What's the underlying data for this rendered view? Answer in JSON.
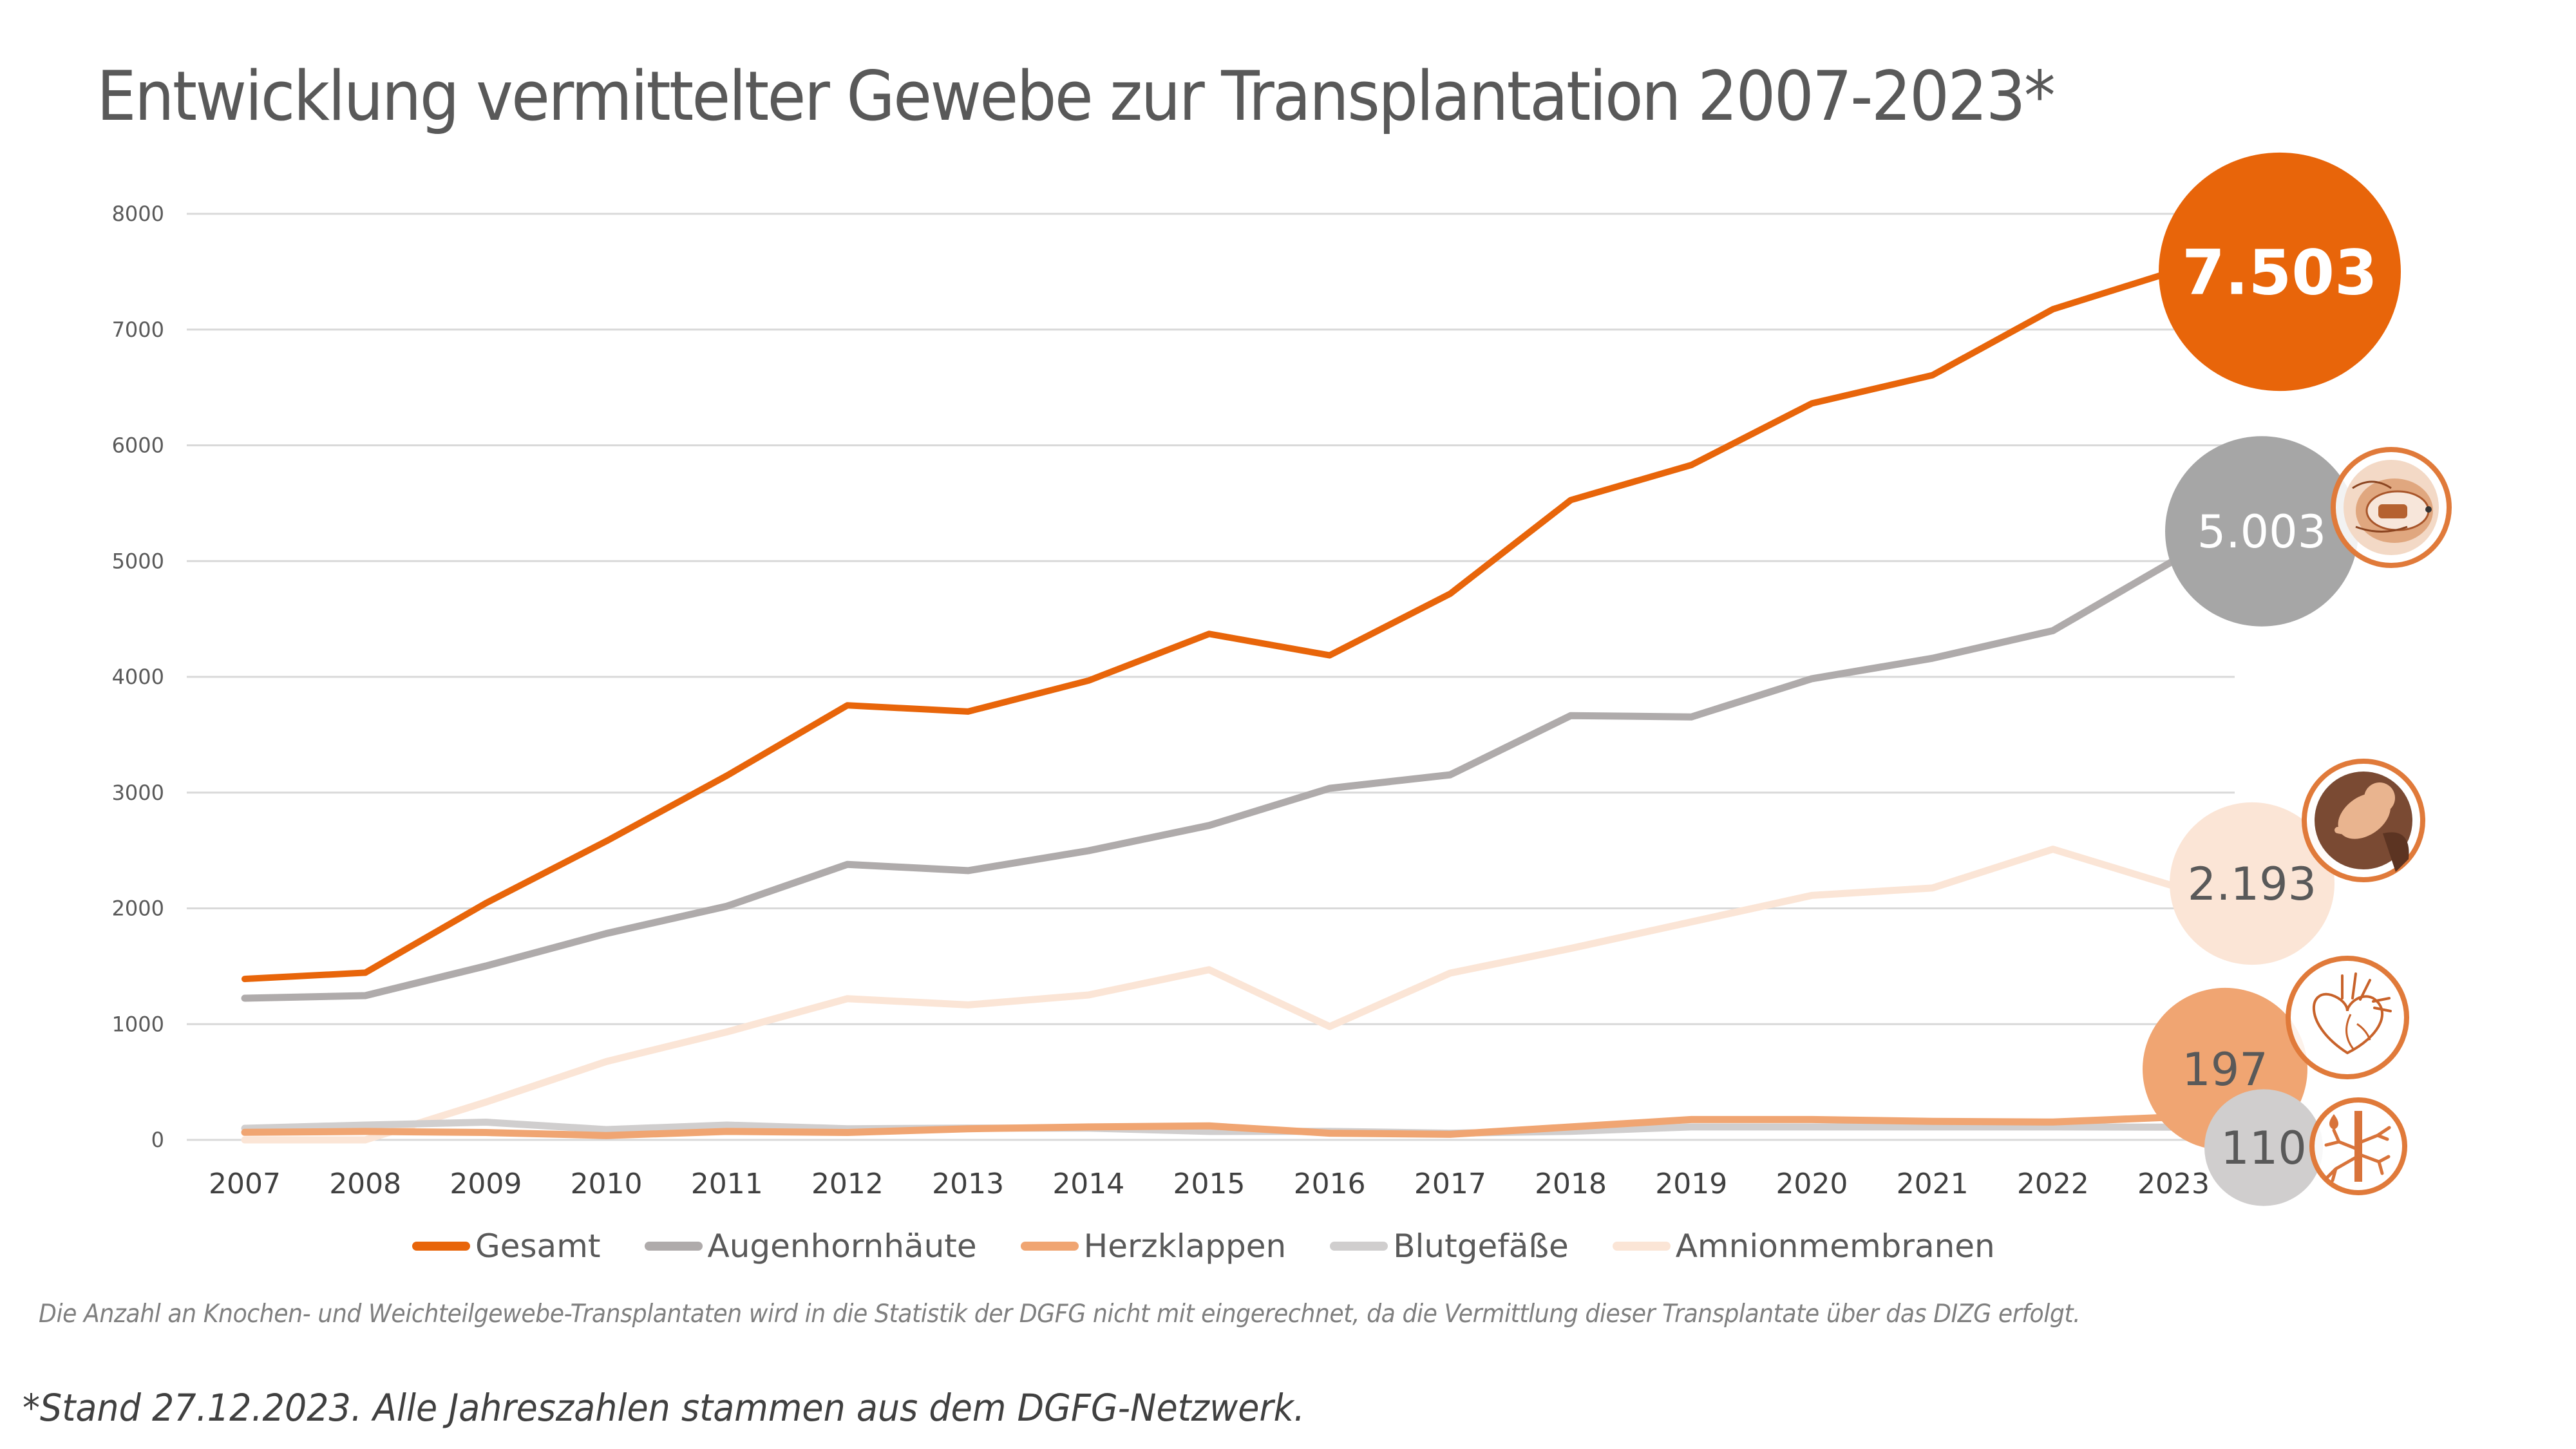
{
  "title": "Entwicklung vermittelter Gewebe zur Transplantation 2007-2023*",
  "note": "Die Anzahl an Knochen- und Weichteilgewebe-Transplantaten wird in die Statistik der DGFG nicht mit eingerechnet, da die Vermittlung dieser Transplantate über das DIZG erfolgt.",
  "footnote": "*Stand 27.12.2023. Alle Jahreszahlen stammen aus dem DGFG-Netzwerk.",
  "chart_data": {
    "type": "line",
    "title": "Entwicklung vermittelter Gewebe zur Transplantation 2007-2023*",
    "xlabel": "",
    "ylabel": "",
    "x": [
      "2007",
      "2008",
      "2009",
      "2010",
      "2011",
      "2012",
      "2013",
      "2014",
      "2015",
      "2016",
      "2017",
      "2018",
      "2019",
      "2020",
      "2021",
      "2022",
      "2023"
    ],
    "ylim": [
      0,
      8000
    ],
    "yticks": [
      0,
      1000,
      2000,
      3000,
      4000,
      5000,
      6000,
      7000,
      8000
    ],
    "grid": true,
    "legend_position": "bottom",
    "series": [
      {
        "name": "Gesamt",
        "color": "#E8650A",
        "values": [
          1390,
          1444,
          2045,
          2581,
          3147,
          3754,
          3700,
          3968,
          4371,
          4186,
          4718,
          5527,
          5830,
          6362,
          6606,
          7176,
          7503
        ],
        "end_label": "7.503",
        "end_label_color": "#FFFFFF",
        "end_label_bold": true,
        "icon": null
      },
      {
        "name": "Augenhornhäute",
        "color": "#AFABAB",
        "values": [
          1224,
          1246,
          1502,
          1783,
          2019,
          2380,
          2326,
          2498,
          2716,
          3037,
          3154,
          3665,
          3654,
          3984,
          4160,
          4399,
          5003
        ],
        "end_label": "5.003",
        "end_label_color": "#FFFFFF",
        "end_label_bold": false,
        "bubble_color": "#A6A6A6",
        "icon": "eye-icon"
      },
      {
        "name": "Herzklappen",
        "color": "#F0A572",
        "values": [
          65,
          73,
          64,
          38,
          73,
          64,
          96,
          112,
          121,
          58,
          48,
          112,
          176,
          176,
          160,
          154,
          197
        ],
        "end_label": "197",
        "end_label_color": "#595959",
        "end_label_bold": false,
        "icon": "heart-icon"
      },
      {
        "name": "Blutgefäße",
        "color": "#D0CECE",
        "values": [
          100,
          128,
          153,
          89,
          128,
          96,
          102,
          102,
          73,
          74,
          58,
          74,
          112,
          112,
          112,
          112,
          110
        ],
        "end_label": "110",
        "end_label_color": "#595959",
        "end_label_bold": false,
        "icon": "blood-vessel-icon"
      },
      {
        "name": "Amnionmembranen",
        "color": "#FBE5D6",
        "values": [
          0,
          0,
          326,
          677,
          933,
          1220,
          1166,
          1252,
          1470,
          979,
          1441,
          1654,
          1883,
          2112,
          2176,
          2511,
          2193
        ],
        "end_label": "2.193",
        "end_label_color": "#595959",
        "end_label_bold": false,
        "icon": "fetus-icon"
      }
    ]
  }
}
